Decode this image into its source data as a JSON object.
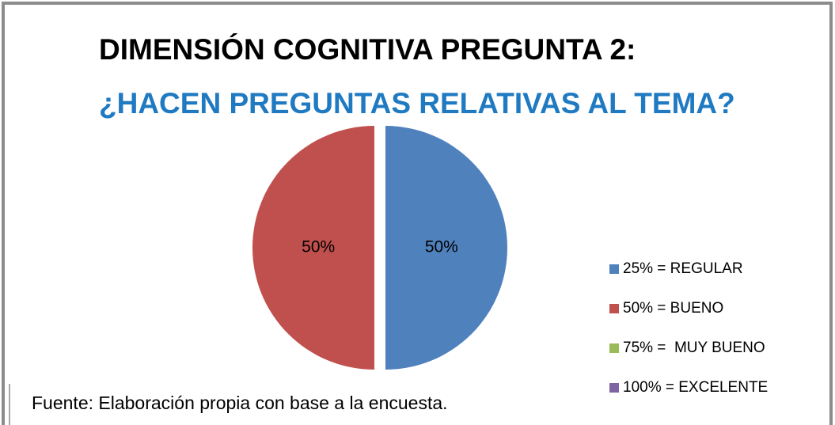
{
  "chart_data": {
    "type": "pie",
    "title": "DIMENSIÓN COGNITIVA PREGUNTA 2:",
    "subtitle": "¿HACEN PREGUNTAS RELATIVAS AL TEMA?",
    "categories": [
      "25% = REGULAR",
      "50% = BUENO",
      "75% =  MUY BUENO",
      "100% = EXCELENTE"
    ],
    "values": [
      50,
      50,
      0,
      0
    ],
    "value_labels": [
      "50%",
      "50%",
      null,
      null
    ],
    "colors": [
      "#4f81bd",
      "#c0504d",
      "#9bbb59",
      "#8064a2"
    ],
    "legend": "right",
    "source": "Fuente: Elaboración propia con base a la encuesta."
  }
}
